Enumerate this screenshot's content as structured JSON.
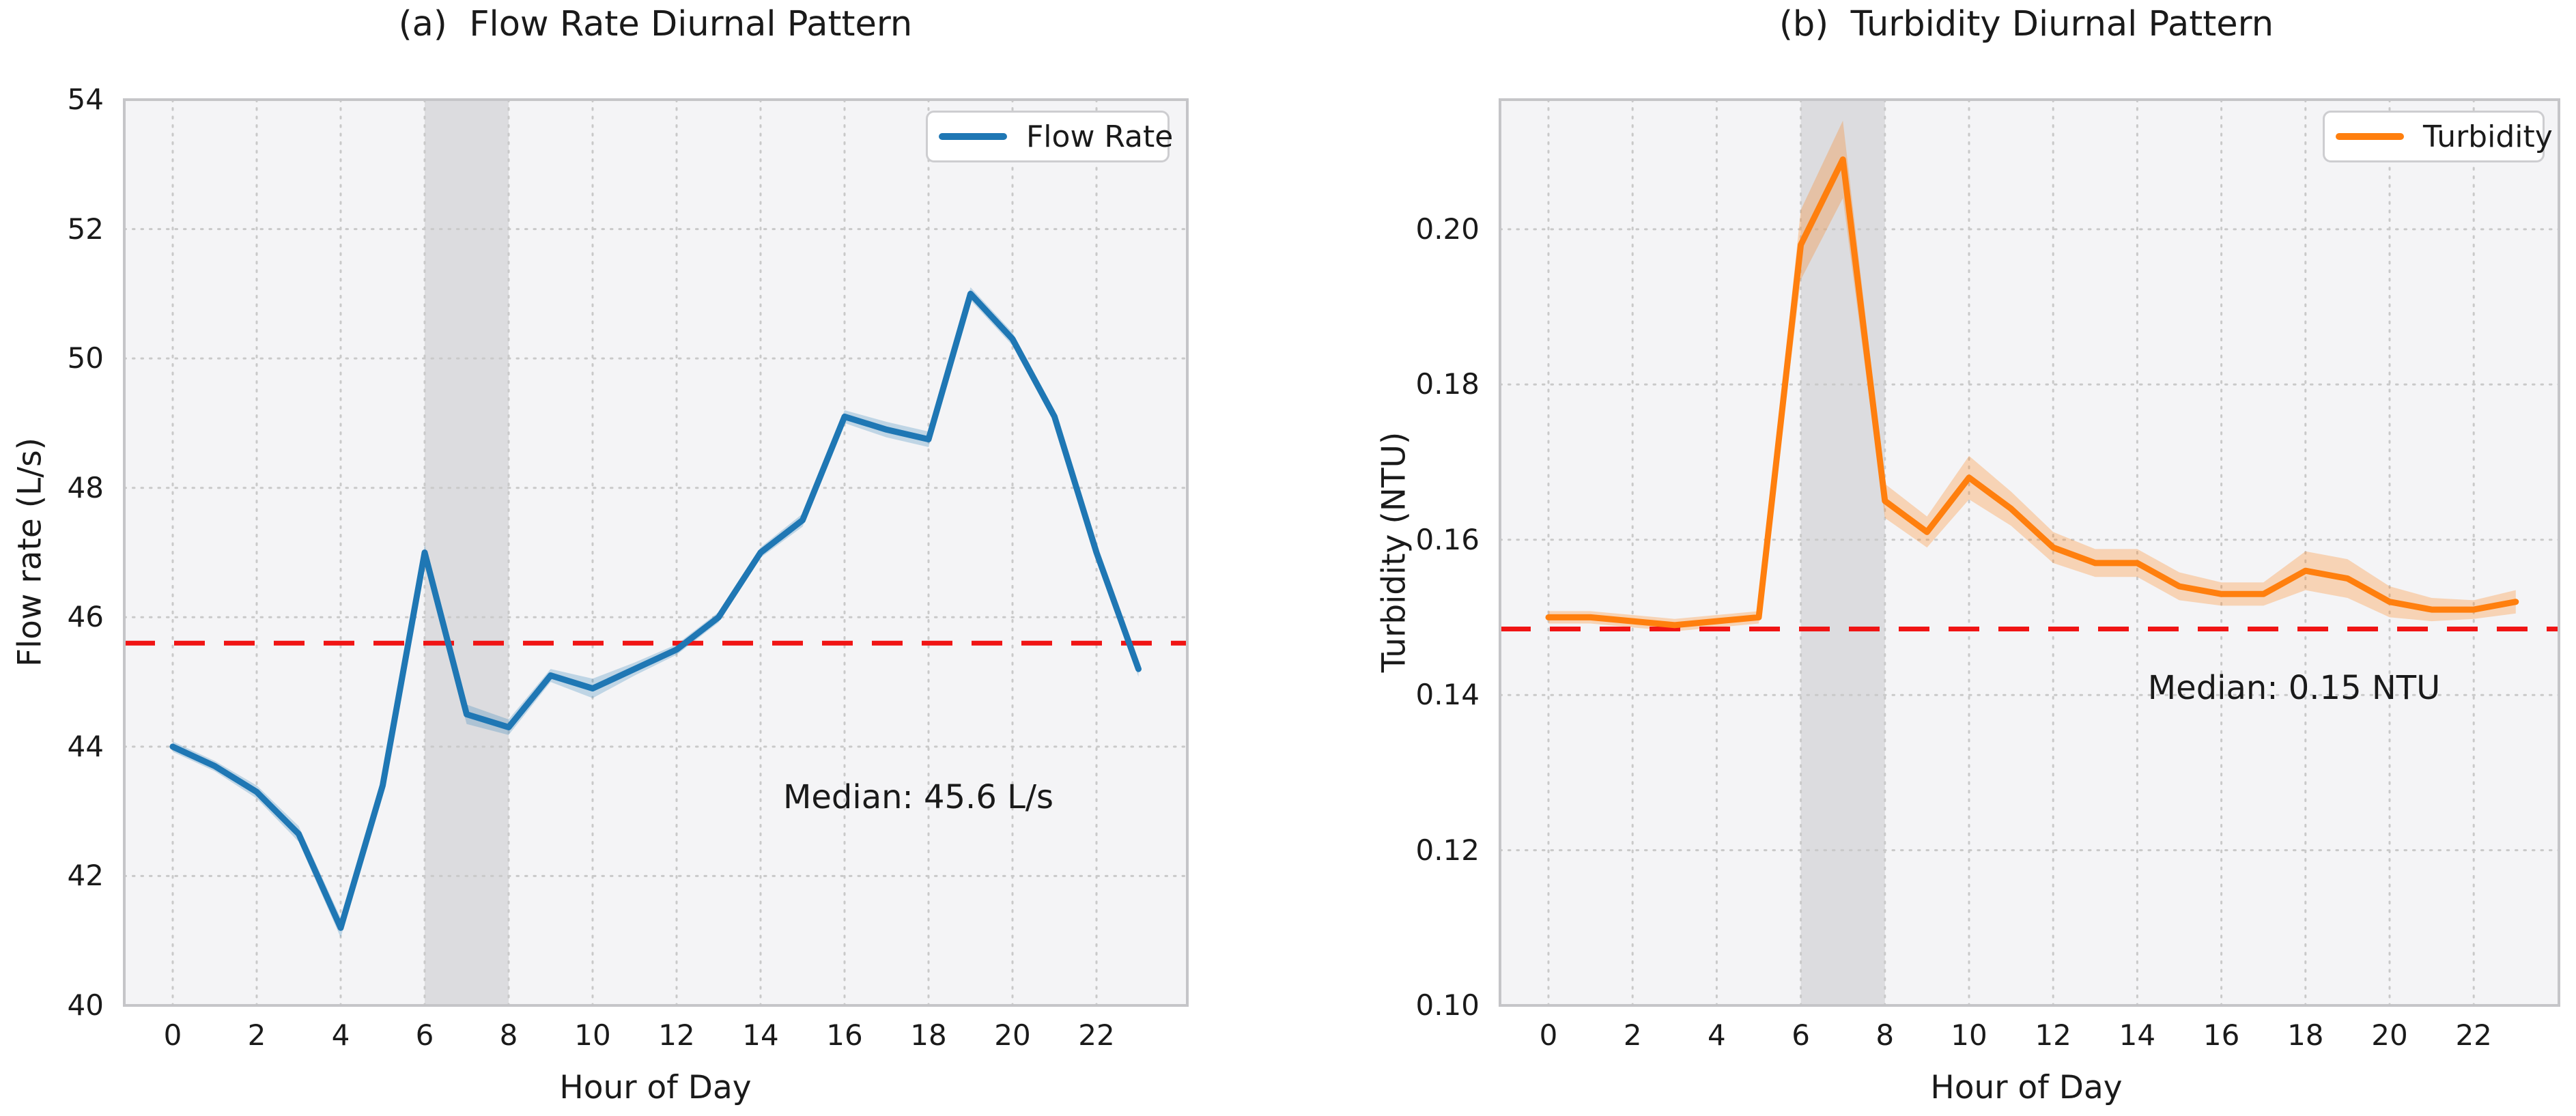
{
  "figure": {
    "background": "#ffffff",
    "accent_blue": "#1f77b4",
    "accent_orange": "#ff7f0e",
    "median_red": "#f01414"
  },
  "chart_data": [
    {
      "type": "line",
      "title": "(a)  Flow Rate Diurnal Pattern",
      "xlabel": "Hour of Day",
      "ylabel": "Flow rate (L/s)",
      "legend_label": "Flow Rate",
      "legend_position": "upper right",
      "grid": true,
      "grid_style": "dotted",
      "x": [
        0,
        1,
        2,
        3,
        4,
        5,
        6,
        7,
        8,
        9,
        10,
        11,
        12,
        13,
        14,
        15,
        16,
        17,
        18,
        19,
        20,
        21,
        22,
        23
      ],
      "series": [
        {
          "name": "Flow Rate",
          "color": "#1f77b4",
          "values": [
            44.0,
            43.7,
            43.3,
            42.65,
            41.2,
            43.4,
            47.0,
            44.5,
            44.3,
            45.1,
            44.9,
            45.2,
            45.5,
            46.0,
            47.0,
            47.5,
            49.1,
            48.9,
            48.75,
            51.0,
            50.3,
            49.1,
            47.0,
            45.2
          ],
          "band_halfwidth": [
            0.08,
            0.08,
            0.1,
            0.12,
            0.15,
            0.1,
            0.12,
            0.15,
            0.12,
            0.1,
            0.15,
            0.1,
            0.08,
            0.08,
            0.08,
            0.1,
            0.1,
            0.12,
            0.12,
            0.1,
            0.1,
            0.1,
            0.1,
            0.12
          ],
          "band_color": "rgba(31,119,180,0.25)"
        }
      ],
      "median_line": {
        "value": 45.6,
        "label": "Median: 45.6 L/s",
        "color": "#f01414",
        "style": "dashed"
      },
      "shaded_region": {
        "x0": 6,
        "x1": 8,
        "color": "rgba(110,110,122,0.18)"
      },
      "xlim": [
        -1.15,
        24.16
      ],
      "ylim": [
        40,
        54
      ],
      "xticks": [
        0,
        2,
        4,
        6,
        8,
        10,
        12,
        14,
        16,
        18,
        20,
        22
      ],
      "xtick_labels": [
        "0",
        "2",
        "4",
        "6",
        "8",
        "10",
        "12",
        "14",
        "16",
        "18",
        "20",
        "22"
      ],
      "yticks": [
        40,
        42,
        44,
        46,
        48,
        50,
        52,
        54
      ],
      "ytick_labels": [
        "40",
        "42",
        "44",
        "46",
        "48",
        "50",
        "52",
        "54"
      ]
    },
    {
      "type": "line",
      "title": "(b)  Turbidity Diurnal Pattern",
      "xlabel": "Hour of Day",
      "ylabel": "Turbidity (NTU)",
      "legend_label": "Turbidity",
      "legend_position": "upper right",
      "grid": true,
      "grid_style": "dotted",
      "x": [
        0,
        1,
        2,
        3,
        4,
        5,
        6,
        7,
        8,
        9,
        10,
        11,
        12,
        13,
        14,
        15,
        16,
        17,
        18,
        19,
        20,
        21,
        22,
        23
      ],
      "series": [
        {
          "name": "Turbidity",
          "color": "#ff7f0e",
          "values": [
            0.15,
            0.15,
            0.1495,
            0.149,
            0.1495,
            0.15,
            0.198,
            0.209,
            0.165,
            0.161,
            0.168,
            0.164,
            0.159,
            0.157,
            0.157,
            0.154,
            0.153,
            0.153,
            0.156,
            0.155,
            0.152,
            0.151,
            0.151,
            0.152
          ],
          "band_halfwidth": [
            0.0008,
            0.0008,
            0.0008,
            0.0008,
            0.0008,
            0.0008,
            0.0045,
            0.005,
            0.0022,
            0.002,
            0.0028,
            0.0022,
            0.002,
            0.0018,
            0.0018,
            0.0018,
            0.0015,
            0.0015,
            0.0025,
            0.0025,
            0.002,
            0.0015,
            0.0012,
            0.0015
          ],
          "band_color": "rgba(255,127,14,0.28)"
        }
      ],
      "median_line": {
        "value": 0.1485,
        "label": "Median: 0.15 NTU",
        "color": "#f01414",
        "style": "dashed"
      },
      "shaded_region": {
        "x0": 6,
        "x1": 8,
        "color": "rgba(110,110,122,0.18)"
      },
      "xlim": [
        -1.15,
        24.03
      ],
      "ylim": [
        0.1,
        0.2167
      ],
      "xticks": [
        0,
        2,
        4,
        6,
        8,
        10,
        12,
        14,
        16,
        18,
        20,
        22
      ],
      "xtick_labels": [
        "0",
        "2",
        "4",
        "6",
        "8",
        "10",
        "12",
        "14",
        "16",
        "18",
        "20",
        "22"
      ],
      "yticks": [
        0.1,
        0.12,
        0.14,
        0.16,
        0.18,
        0.2
      ],
      "ytick_labels": [
        "0.10",
        "0.12",
        "0.14",
        "0.16",
        "0.18",
        "0.20"
      ]
    }
  ]
}
